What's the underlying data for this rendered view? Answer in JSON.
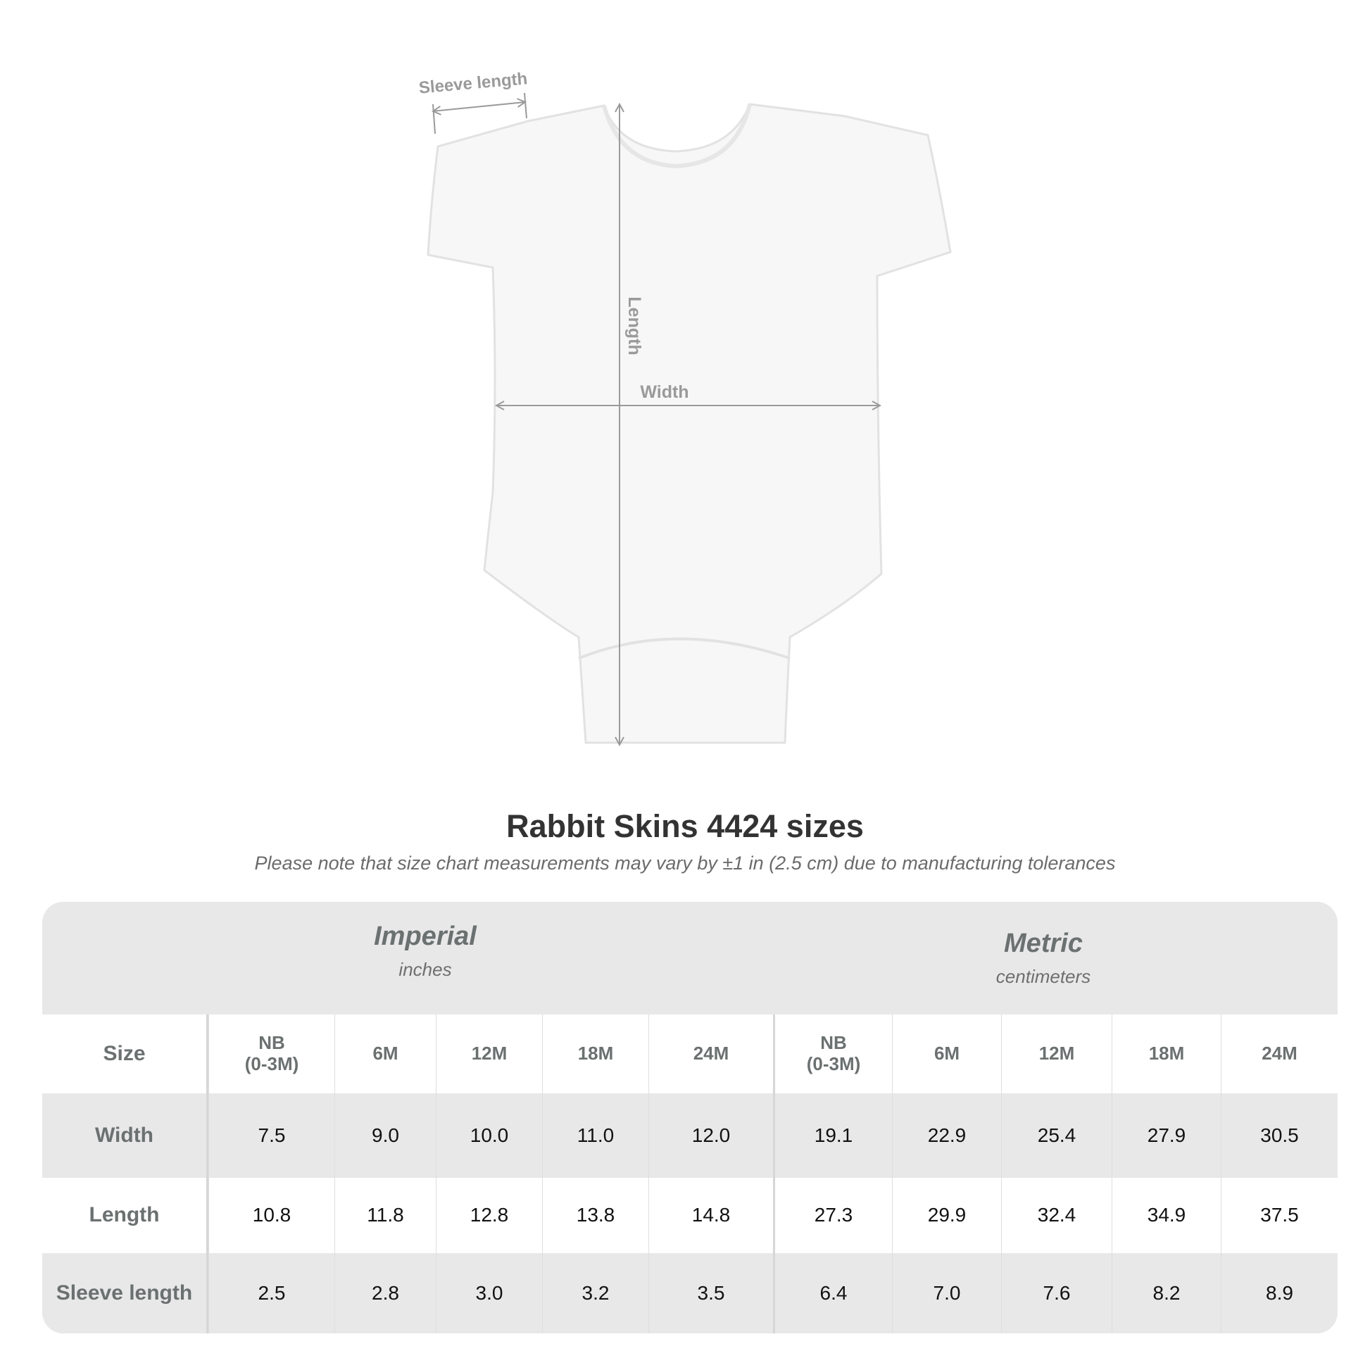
{
  "diagram": {
    "labels": {
      "sleeve": "Sleeve length",
      "length": "Length",
      "width": "Width"
    },
    "colors": {
      "arrow": "#9a9a9a",
      "garment": "#f7f7f7"
    }
  },
  "title": "Rabbit Skins 4424 sizes",
  "subtitle": "Please note that size chart measurements may vary by ±1 in (2.5 cm) due to manufacturing tolerances",
  "table": {
    "imperial": {
      "name": "Imperial",
      "unit": "inches"
    },
    "metric": {
      "name": "Metric",
      "unit": "centimeters"
    },
    "size_label": "Size",
    "sizes": [
      "NB\n(0-3M)",
      "6M",
      "12M",
      "18M",
      "24M"
    ],
    "rows": [
      {
        "label": "Width",
        "imperial": [
          "7.5",
          "9.0",
          "10.0",
          "11.0",
          "12.0"
        ],
        "metric": [
          "19.1",
          "22.9",
          "25.4",
          "27.9",
          "30.5"
        ]
      },
      {
        "label": "Length",
        "imperial": [
          "10.8",
          "11.8",
          "12.8",
          "13.8",
          "14.8"
        ],
        "metric": [
          "27.3",
          "29.9",
          "32.4",
          "34.9",
          "37.5"
        ]
      },
      {
        "label": "Sleeve length",
        "imperial": [
          "2.5",
          "2.8",
          "3.0",
          "3.2",
          "3.5"
        ],
        "metric": [
          "6.4",
          "7.0",
          "7.6",
          "8.2",
          "8.9"
        ]
      }
    ]
  }
}
